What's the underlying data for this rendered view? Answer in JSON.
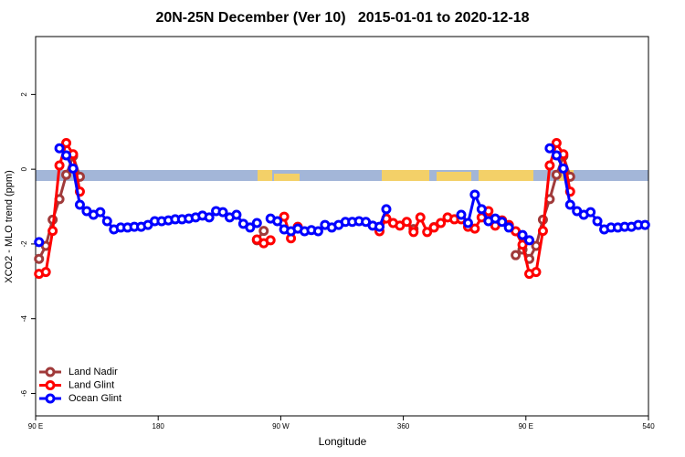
{
  "chart_data": {
    "type": "line",
    "title": "20N-25N December (Ver 10)   2015-01-01 to 2020-12-18",
    "xlabel": "Longitude",
    "ylabel": "XCO2 - MLO trend (ppm)",
    "x": [
      92.5,
      97.5,
      102.5,
      107.5,
      112.5,
      117.5,
      122.5,
      127.5,
      132.5,
      137.5,
      142.5,
      147.5,
      152.5,
      157.5,
      162.5,
      167.5,
      172.5,
      177.5,
      182.5,
      187.5,
      192.5,
      197.5,
      202.5,
      207.5,
      212.5,
      217.5,
      222.5,
      227.5,
      232.5,
      237.5,
      242.5,
      247.5,
      252.5,
      257.5,
      262.5,
      267.5,
      272.5,
      277.5,
      282.5,
      287.5,
      292.5,
      297.5,
      302.5,
      307.5,
      312.5,
      317.5,
      322.5,
      327.5,
      332.5,
      337.5,
      342.5,
      347.5,
      352.5,
      357.5,
      362.5,
      367.5,
      372.5,
      377.5,
      382.5,
      387.5,
      392.5,
      397.5,
      402.5,
      407.5,
      412.5,
      417.5,
      422.5,
      427.5,
      432.5,
      437.5,
      442.5,
      447.5,
      452.5,
      457.5,
      462.5,
      467.5,
      472.5,
      477.5,
      482.5,
      487.5,
      492.5,
      497.5,
      502.5,
      507.5,
      512.5,
      517.5,
      522.5,
      527.5,
      532.5,
      537.5
    ],
    "series": [
      {
        "name": "Land Nadir",
        "color": "#a03a3a",
        "values": [
          -2.4,
          -2.05,
          -1.35,
          -0.8,
          -0.15,
          0.35,
          -0.2,
          null,
          null,
          null,
          null,
          null,
          null,
          null,
          null,
          null,
          null,
          null,
          null,
          null,
          null,
          null,
          null,
          null,
          null,
          null,
          null,
          null,
          null,
          null,
          null,
          null,
          -1.9,
          -1.65,
          null,
          null,
          null,
          null,
          null,
          null,
          null,
          null,
          null,
          null,
          null,
          null,
          null,
          null,
          null,
          null,
          null,
          null,
          null,
          null,
          null,
          -1.6,
          null,
          null,
          -1.55,
          null,
          null,
          null,
          null,
          null,
          null,
          null,
          null,
          null,
          null,
          null,
          -2.3,
          -2.15,
          -2.4,
          -2.05,
          -1.35,
          -0.8,
          -0.15,
          0.35,
          -0.2,
          null,
          null,
          null,
          null,
          null,
          null,
          null,
          null,
          null,
          null,
          null
        ]
      },
      {
        "name": "Land Glint",
        "color": "#ff0000",
        "values": [
          -2.8,
          -2.75,
          -1.65,
          0.1,
          0.7,
          0.4,
          -0.6,
          null,
          null,
          null,
          null,
          null,
          null,
          null,
          null,
          null,
          null,
          null,
          null,
          null,
          null,
          null,
          null,
          null,
          null,
          null,
          null,
          null,
          null,
          null,
          null,
          null,
          -1.88,
          -1.98,
          -1.9,
          null,
          -1.27,
          -1.85,
          -1.54,
          null,
          null,
          null,
          null,
          null,
          null,
          null,
          null,
          null,
          null,
          null,
          -1.66,
          -1.32,
          -1.44,
          -1.51,
          -1.41,
          -1.68,
          -1.29,
          -1.68,
          -1.56,
          -1.44,
          -1.29,
          -1.34,
          -1.34,
          -1.54,
          -1.59,
          -1.29,
          -1.12,
          -1.51,
          -1.37,
          -1.49,
          -1.66,
          -2.02,
          -2.8,
          -2.75,
          -1.65,
          0.1,
          0.7,
          0.4,
          -0.6,
          null,
          null,
          null,
          null,
          null,
          null,
          null,
          null,
          null,
          null,
          null
        ]
      },
      {
        "name": "Ocean Glint",
        "color": "#0000ff",
        "values": [
          -1.95,
          null,
          null,
          0.56,
          0.37,
          0.02,
          -0.95,
          -1.12,
          -1.22,
          -1.15,
          -1.39,
          -1.61,
          -1.56,
          -1.56,
          -1.54,
          -1.54,
          -1.49,
          -1.39,
          -1.39,
          -1.37,
          -1.34,
          -1.34,
          -1.32,
          -1.29,
          -1.24,
          -1.29,
          -1.12,
          -1.15,
          -1.29,
          -1.22,
          -1.46,
          -1.56,
          -1.44,
          null,
          -1.32,
          -1.39,
          -1.61,
          -1.66,
          -1.59,
          -1.66,
          -1.63,
          -1.66,
          -1.49,
          -1.56,
          -1.49,
          -1.41,
          -1.41,
          -1.39,
          -1.41,
          -1.51,
          -1.54,
          -1.07,
          null,
          null,
          null,
          null,
          null,
          null,
          null,
          null,
          null,
          null,
          -1.22,
          -1.44,
          -0.68,
          -1.07,
          -1.39,
          -1.32,
          -1.41,
          -1.56,
          null,
          -1.76,
          -1.9,
          null,
          null,
          0.56,
          0.37,
          0.02,
          -0.95,
          -1.12,
          -1.22,
          -1.15,
          -1.39,
          -1.61,
          -1.56,
          -1.56,
          -1.54,
          -1.54,
          -1.49,
          -1.49
        ]
      }
    ],
    "xlim": [
      90,
      540
    ],
    "xticks": [
      {
        "value": 90,
        "label": "90 E"
      },
      180,
      {
        "value": 270,
        "label": "90 W"
      },
      360,
      {
        "value": 450,
        "label": "90 E"
      },
      540
    ],
    "ylim": [
      -6.6,
      3.55
    ],
    "yticks": [
      2,
      0,
      -2,
      -4,
      -6
    ],
    "legend": "bottom-left"
  }
}
